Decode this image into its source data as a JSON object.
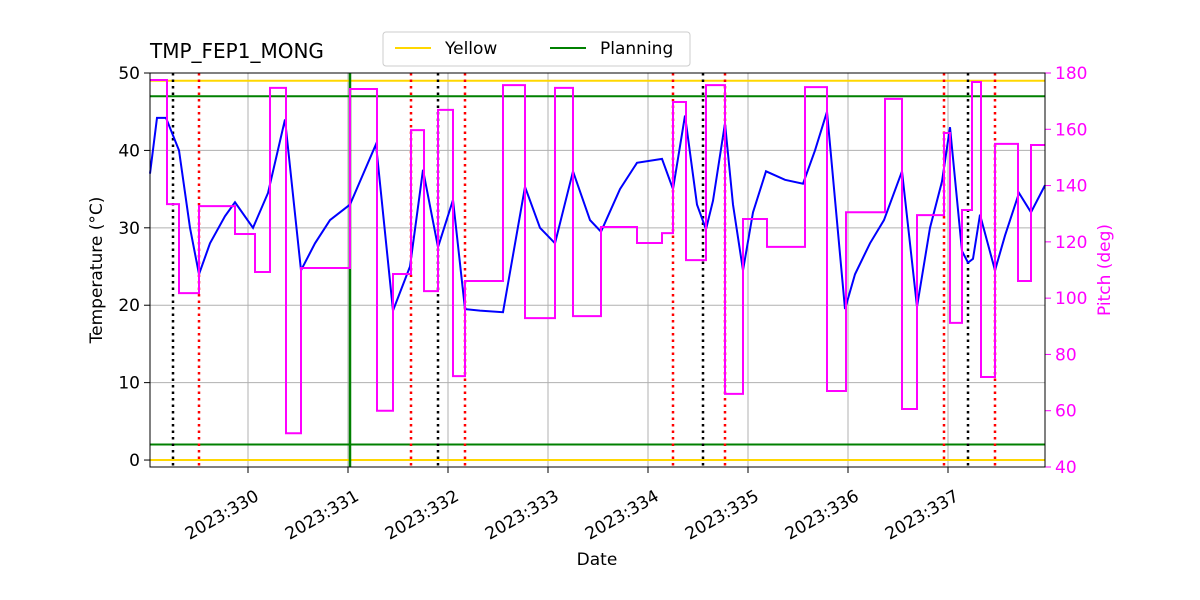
{
  "chart_data": {
    "type": "line",
    "title": "TMP_FEP1_MONG",
    "xlabel": "Date",
    "ylabel": "Temperature (°C)",
    "y2label": "Pitch (deg)",
    "xlim": [
      329.02,
      337.97
    ],
    "ylim": [
      -0.9,
      50
    ],
    "y2lim": [
      40,
      180
    ],
    "xticks": [
      {
        "value": 330,
        "label": "2023:330"
      },
      {
        "value": 331,
        "label": "2023:331"
      },
      {
        "value": 332,
        "label": "2023:332"
      },
      {
        "value": 333,
        "label": "2023:333"
      },
      {
        "value": 334,
        "label": "2023:334"
      },
      {
        "value": 335,
        "label": "2023:335"
      },
      {
        "value": 336,
        "label": "2023:336"
      },
      {
        "value": 337,
        "label": "2023:337"
      }
    ],
    "yticks": [
      0,
      10,
      20,
      30,
      40,
      50
    ],
    "y2ticks": [
      40,
      60,
      80,
      100,
      120,
      140,
      160,
      180
    ],
    "y2color": "magenta",
    "grid": true,
    "series": [
      {
        "color": "blue",
        "x": [
          329.02,
          329.09,
          329.18,
          329.31,
          329.42,
          329.51,
          329.62,
          329.77,
          329.87,
          330.05,
          330.2,
          330.37,
          330.53,
          330.67,
          330.82,
          331.02,
          331.12,
          331.28,
          331.45,
          331.62,
          331.75,
          331.9,
          332.05,
          332.17,
          332.32,
          332.55,
          332.77,
          332.92,
          333.07,
          333.25,
          333.42,
          333.53,
          333.72,
          333.89,
          334.14,
          334.25,
          334.37,
          334.49,
          334.58,
          334.65,
          334.77,
          334.85,
          334.95,
          335.05,
          335.18,
          335.37,
          335.55,
          335.67,
          335.79,
          335.97,
          336.07,
          336.22,
          336.36,
          336.54,
          336.69,
          336.82,
          336.94,
          337.02,
          337.14,
          337.2,
          337.25,
          337.32,
          337.47,
          337.57,
          337.71,
          337.83,
          337.97
        ],
        "values": [
          37,
          44.2,
          44.2,
          40,
          30,
          24,
          28,
          31.5,
          33.3,
          30,
          34.5,
          44,
          24.5,
          28,
          31,
          33,
          36,
          40.8,
          19.3,
          25,
          37.5,
          27.5,
          33.6,
          19.5,
          19.3,
          19.1,
          35.3,
          30,
          28,
          37.3,
          31,
          29.5,
          35,
          38.4,
          38.9,
          35,
          44.5,
          33,
          29.8,
          33.5,
          43.5,
          33,
          24.5,
          32,
          37.3,
          36.2,
          35.7,
          40,
          45,
          19.5,
          24,
          28,
          31,
          37.3,
          19.8,
          30,
          36,
          43,
          27,
          25.5,
          26,
          31.7,
          24.5,
          29,
          34.5,
          32,
          35.5
        ]
      },
      {
        "color": "magenta",
        "axis": "y2",
        "step": "post",
        "x": [
          329.02,
          329.19,
          329.31,
          329.51,
          329.87,
          330.07,
          330.22,
          330.38,
          330.53,
          331.02,
          331.29,
          331.45,
          331.63,
          331.76,
          331.9,
          332.05,
          332.17,
          332.55,
          332.77,
          333.07,
          333.25,
          333.53,
          333.89,
          334.14,
          334.25,
          334.38,
          334.58,
          334.77,
          334.95,
          335.19,
          335.57,
          335.79,
          335.98,
          336.37,
          336.54,
          336.69,
          336.96,
          337.02,
          337.14,
          337.24,
          337.33,
          337.47,
          337.7,
          337.83
        ],
        "values": [
          177.5,
          133.4,
          101.8,
          132.7,
          122.8,
          109.3,
          174.7,
          52,
          110.7,
          174.3,
          60,
          108.6,
          159.7,
          102.5,
          166.9,
          72.3,
          106.1,
          175.7,
          92.9,
          174.7,
          93.6,
          125.3,
          119.6,
          123.1,
          169.7,
          113.5,
          175.7,
          66,
          128.1,
          118.2,
          175,
          67,
          130.5,
          170.8,
          60.6,
          129.5,
          158.7,
          91.2,
          131.3,
          176.8,
          72,
          154.8,
          106.1,
          154.4
        ]
      }
    ],
    "hlines": [
      {
        "name": "Yellow",
        "color": "gold",
        "values": [
          0,
          49
        ]
      },
      {
        "name": "Planning",
        "color": "green",
        "values": [
          2,
          47
        ]
      }
    ],
    "vlines": [
      {
        "color": "black",
        "style": "dotted",
        "x": [
          329.25,
          331.9,
          334.55,
          337.2
        ]
      },
      {
        "color": "red",
        "style": "dotted",
        "x": [
          329.51,
          331.63,
          332.17,
          334.25,
          334.77,
          336.96,
          337.47
        ]
      },
      {
        "color": "green",
        "style": "solid",
        "x": [
          331.02
        ]
      }
    ]
  }
}
